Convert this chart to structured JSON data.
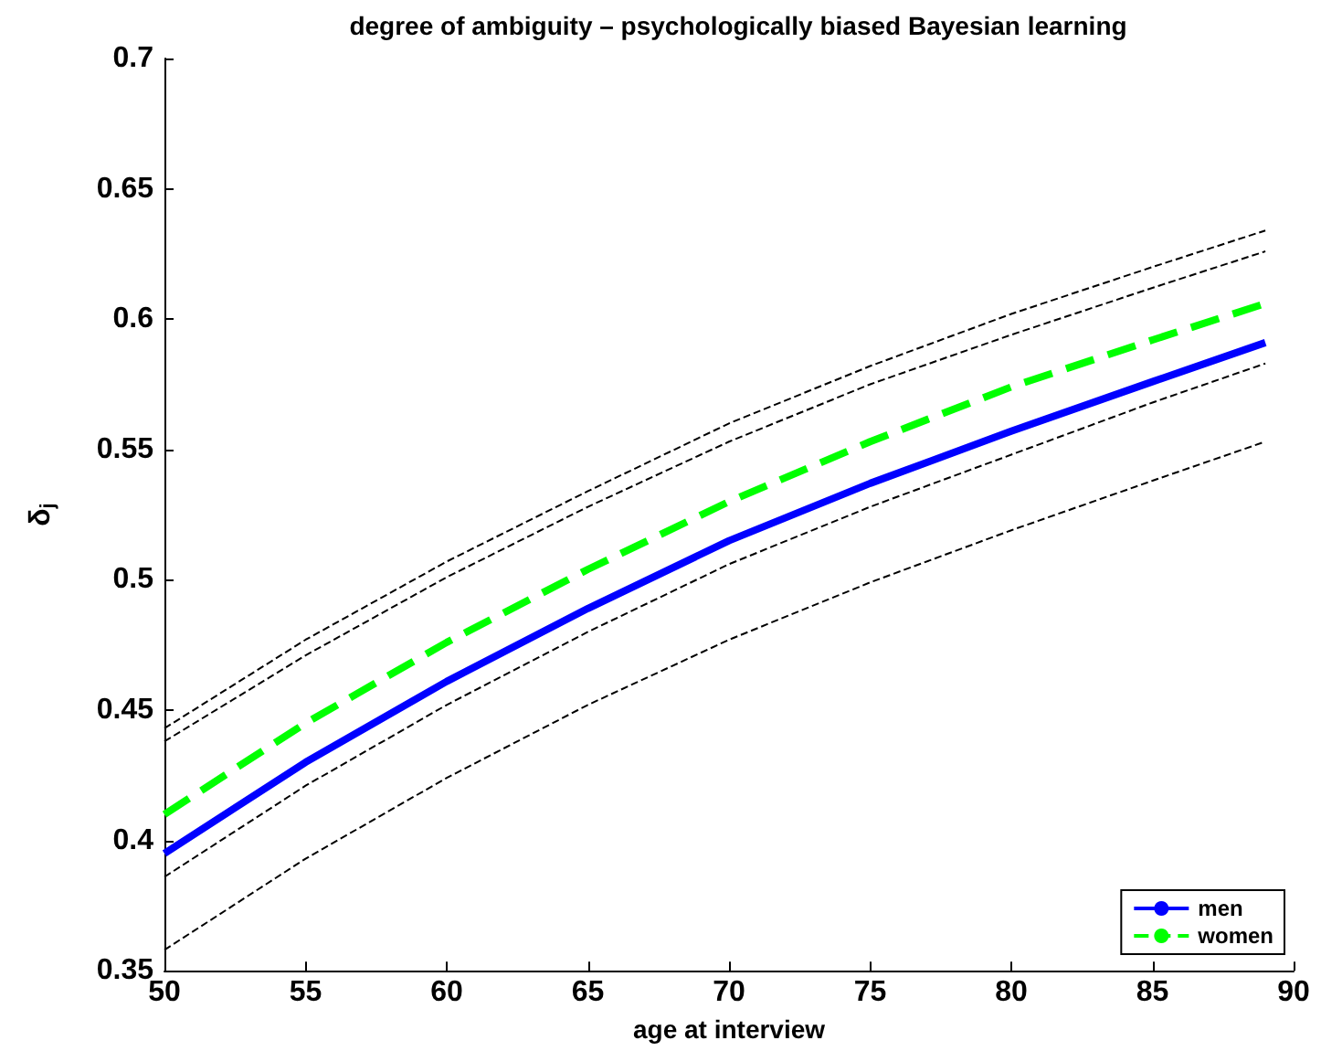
{
  "chart_data": {
    "type": "line",
    "title": "degree of ambiguity – psychologically biased Bayesian learning",
    "xlabel": "age at interview",
    "ylabel": "δ$_{j}$",
    "x": [
      50,
      55,
      60,
      65,
      70,
      75,
      80,
      85,
      89
    ],
    "series": [
      {
        "name": "men",
        "color": "#0000ff",
        "line_style": "solid",
        "values": [
          0.395,
          0.43,
          0.461,
          0.489,
          0.515,
          0.537,
          0.557,
          0.576,
          0.591
        ]
      },
      {
        "name": "women",
        "color": "#00ff00",
        "line_style": "dashed",
        "values": [
          0.41,
          0.445,
          0.476,
          0.504,
          0.53,
          0.553,
          0.574,
          0.592,
          0.606
        ]
      },
      {
        "color": "#000000",
        "line_style": "dashed",
        "values": [
          0.443,
          0.477,
          0.507,
          0.534,
          0.56,
          0.582,
          0.602,
          0.62,
          0.634
        ]
      },
      {
        "color": "#000000",
        "line_style": "dashed",
        "values": [
          0.438,
          0.471,
          0.501,
          0.528,
          0.553,
          0.575,
          0.594,
          0.612,
          0.626
        ]
      },
      {
        "color": "#000000",
        "line_style": "dashed",
        "values": [
          0.386,
          0.421,
          0.452,
          0.48,
          0.506,
          0.528,
          0.548,
          0.568,
          0.583
        ]
      },
      {
        "color": "#000000",
        "line_style": "dashed",
        "values": [
          0.358,
          0.393,
          0.424,
          0.452,
          0.477,
          0.499,
          0.519,
          0.538,
          0.553
        ]
      }
    ],
    "xlim": [
      50,
      90
    ],
    "xticks": [
      50,
      55,
      60,
      65,
      70,
      75,
      80,
      85,
      90
    ],
    "ylim": [
      0.35,
      0.7
    ],
    "yticks": [
      0.35,
      0.4,
      0.45,
      0.5,
      0.55,
      0.6,
      0.65,
      0.7
    ],
    "grid": false,
    "legend": "bottom right",
    "marker": "none"
  }
}
